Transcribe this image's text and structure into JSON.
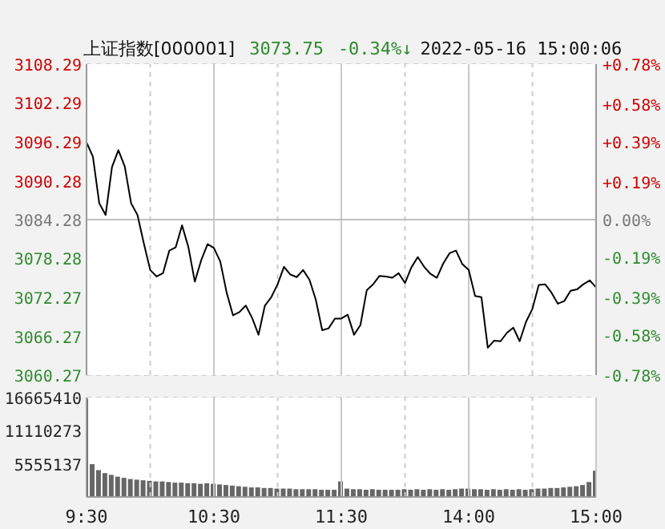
{
  "chart_data": [
    {
      "type": "line",
      "title": "上证指数[000001]",
      "annotations": [
        "3073.75",
        "-0.34%↓",
        "2022-05-16 15:00:06"
      ],
      "categories": [
        null,
        null,
        null,
        null,
        null,
        null,
        null,
        null,
        null,
        null,
        null,
        null,
        null,
        null,
        null,
        null,
        null,
        null,
        null,
        null,
        null,
        null,
        null,
        null,
        null,
        null,
        null,
        null,
        null,
        null,
        null,
        null,
        null,
        null,
        null,
        null,
        null,
        null,
        null,
        null,
        null,
        null,
        null,
        null,
        null,
        null,
        null,
        null,
        null,
        null,
        null,
        null,
        null,
        null,
        null,
        null,
        null,
        null,
        null,
        null,
        null,
        null,
        null,
        null,
        null,
        null,
        null,
        null,
        null,
        null,
        null,
        null,
        null,
        null,
        null,
        null,
        null,
        null,
        null,
        null,
        null
      ],
      "series": [
        {
          "color": "#000000",
          "values": [
            3096.2,
            3094.0,
            3086.8,
            3085.0,
            3092.4,
            3095.0,
            3092.5,
            3086.8,
            3085.0,
            3080.6,
            3076.5,
            3075.5,
            3076.0,
            3079.5,
            3080.0,
            3083.4,
            3080.0,
            3074.7,
            3078.0,
            3080.5,
            3079.9,
            3077.8,
            3073.0,
            3069.5,
            3070.0,
            3071.0,
            3069.1,
            3066.5,
            3071.0,
            3072.3,
            3074.3,
            3077.0,
            3075.8,
            3075.4,
            3076.5,
            3075.0,
            3071.9,
            3067.2,
            3067.5,
            3069.0,
            3069.0,
            3069.6,
            3066.5,
            3068.0,
            3073.4,
            3074.3,
            3075.6,
            3075.5,
            3075.3,
            3076.0,
            3074.5,
            3076.9,
            3078.5,
            3077.0,
            3075.9,
            3075.3,
            3077.5,
            3079.1,
            3079.5,
            3077.4,
            3076.5,
            3072.5,
            3072.3,
            3064.5,
            3065.6,
            3065.5,
            3066.8,
            3067.6,
            3065.5,
            3068.5,
            3070.5,
            3074.2,
            3074.3,
            3073.0,
            3071.3,
            3071.7,
            3073.3,
            3073.5,
            3074.3,
            3074.9,
            3073.8
          ]
        }
      ],
      "ylim": [
        3060.27,
        3108.29
      ],
      "yticks": [
        3060.27,
        3066.27,
        3072.27,
        3078.28,
        3084.28,
        3090.28,
        3096.29,
        3102.29,
        3108.29
      ],
      "y2lim": [
        -0.78,
        0.78
      ],
      "y2ticks": [
        {
          "value": -0.78,
          "label": "-0.78%"
        },
        {
          "value": -0.58,
          "label": "-0.58%"
        },
        {
          "value": -0.39,
          "label": "-0.39%"
        },
        {
          "value": -0.19,
          "label": "-0.19%"
        },
        {
          "value": 0,
          "label": "0.00%"
        },
        {
          "value": 0.19,
          "label": "+0.19%"
        },
        {
          "value": 0.39,
          "label": "+0.39%"
        },
        {
          "value": 0.58,
          "label": "+0.58%"
        },
        {
          "value": 0.78,
          "label": "+0.78%"
        }
      ],
      "ref_lines": [
        {
          "axis": "y2",
          "value": 0,
          "color": "#c0c0c0"
        }
      ],
      "grid": true,
      "tick_labels": "y",
      "line_style": "solid"
    },
    {
      "type": "bar",
      "color": "#666666",
      "categories": [
        "9:30",
        null,
        null,
        null,
        null,
        null,
        null,
        null,
        null,
        null,
        null,
        null,
        null,
        null,
        null,
        null,
        null,
        null,
        null,
        null,
        "10:30",
        null,
        null,
        null,
        null,
        null,
        null,
        null,
        null,
        null,
        null,
        null,
        null,
        null,
        null,
        null,
        null,
        null,
        null,
        null,
        "11:30",
        null,
        null,
        null,
        null,
        null,
        null,
        null,
        null,
        null,
        null,
        null,
        null,
        null,
        null,
        null,
        null,
        null,
        null,
        null,
        "14:00",
        null,
        null,
        null,
        null,
        null,
        null,
        null,
        null,
        null,
        null,
        null,
        null,
        null,
        null,
        null,
        null,
        null,
        null,
        null,
        "15:00"
      ],
      "values": [
        16500000,
        5500000,
        4500000,
        4000000,
        3700000,
        3400000,
        3200000,
        3000000,
        2900000,
        2800000,
        2700000,
        2600000,
        2600000,
        2500000,
        2400000,
        2400000,
        2300000,
        2300000,
        2200000,
        2300000,
        2200000,
        2100000,
        2000000,
        1900000,
        1800000,
        1700000,
        1600000,
        1600000,
        1500000,
        1500000,
        1400000,
        1400000,
        1400000,
        1300000,
        1300000,
        1300000,
        1300000,
        1200000,
        1200000,
        1200000,
        2600000,
        1400000,
        1300000,
        1300000,
        1200000,
        1300000,
        1200000,
        1200000,
        1200000,
        1200000,
        1300000,
        1200000,
        1300000,
        1200000,
        1300000,
        1200000,
        1300000,
        1200000,
        1300000,
        1400000,
        1400000,
        1300000,
        1300000,
        1200000,
        1300000,
        1200000,
        1300000,
        1200000,
        1300000,
        1200000,
        1300000,
        1400000,
        1400000,
        1500000,
        1500000,
        1600000,
        1700000,
        1800000,
        2000000,
        2500000,
        4400000
      ],
      "ylim": [
        0,
        16665410
      ],
      "yticks": [
        5555137,
        11110273,
        16665410
      ],
      "grid": true
    }
  ]
}
